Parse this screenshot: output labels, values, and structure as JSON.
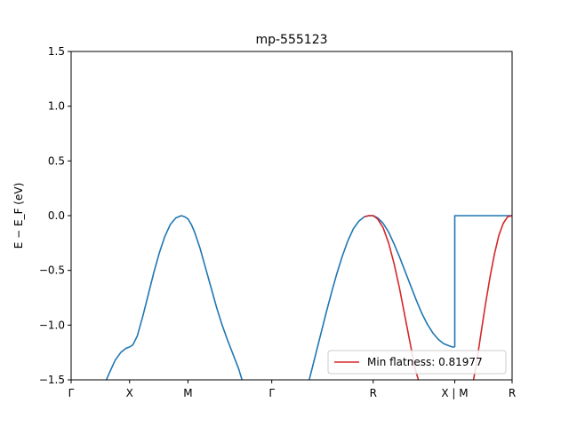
{
  "chart_data": {
    "type": "line",
    "title": "mp-555123",
    "ylabel": "E − E_F (eV)",
    "xlabel": "",
    "ylim": [
      -1.5,
      1.5
    ],
    "yticks": [
      {
        "value": 1.5,
        "label": "1.5"
      },
      {
        "value": 1.0,
        "label": "1.0"
      },
      {
        "value": 0.5,
        "label": "0.5"
      },
      {
        "value": 0.0,
        "label": "0.0"
      },
      {
        "value": -0.5,
        "label": "−0.5"
      },
      {
        "value": -1.0,
        "label": "−1.0"
      },
      {
        "value": -1.5,
        "label": "−1.5"
      }
    ],
    "xlim": [
      0,
      4.0
    ],
    "kpath_ticks": [
      {
        "x": 0.0,
        "label": "Γ"
      },
      {
        "x": 0.53,
        "label": "X"
      },
      {
        "x": 1.06,
        "label": "M"
      },
      {
        "x": 1.82,
        "label": "Γ"
      },
      {
        "x": 2.74,
        "label": "R"
      },
      {
        "x": 3.48,
        "label": "X | M"
      },
      {
        "x": 4.0,
        "label": "R"
      }
    ],
    "grid": false,
    "legend": {
      "position": "lower-right",
      "entries": [
        "Min flatness: 0.81977"
      ]
    },
    "series": [
      {
        "color": "#1f77b4",
        "segments": [
          {
            "x": [
              0.32,
              0.35,
              0.4,
              0.45,
              0.5,
              0.53,
              0.56,
              0.6,
              0.65,
              0.7,
              0.75,
              0.8,
              0.85,
              0.9,
              0.95,
              1.0,
              1.03,
              1.06,
              1.09,
              1.12,
              1.17,
              1.22,
              1.27,
              1.32,
              1.37,
              1.42,
              1.47,
              1.52,
              1.55
            ],
            "y": [
              -1.5,
              -1.43,
              -1.32,
              -1.25,
              -1.21,
              -1.2,
              -1.18,
              -1.1,
              -0.92,
              -0.72,
              -0.52,
              -0.34,
              -0.19,
              -0.08,
              -0.02,
              0.0,
              -0.01,
              -0.03,
              -0.08,
              -0.15,
              -0.3,
              -0.48,
              -0.66,
              -0.84,
              -1.0,
              -1.14,
              -1.27,
              -1.4,
              -1.5
            ]
          },
          {
            "x": [
              2.16,
              2.21,
              2.26,
              2.31,
              2.36,
              2.41,
              2.46,
              2.51,
              2.56,
              2.61,
              2.66,
              2.7,
              2.74,
              2.78,
              2.83,
              2.88,
              2.93,
              2.98,
              3.03,
              3.08,
              3.13,
              3.18,
              3.23,
              3.28,
              3.33,
              3.38,
              3.43,
              3.46,
              3.48
            ],
            "y": [
              -1.5,
              -1.3,
              -1.1,
              -0.9,
              -0.71,
              -0.53,
              -0.37,
              -0.23,
              -0.12,
              -0.05,
              -0.01,
              0.0,
              0.0,
              -0.02,
              -0.07,
              -0.15,
              -0.26,
              -0.38,
              -0.51,
              -0.64,
              -0.77,
              -0.89,
              -0.99,
              -1.07,
              -1.13,
              -1.17,
              -1.19,
              -1.2,
              -1.2
            ]
          },
          {
            "x": [
              3.48,
              3.48,
              4.0
            ],
            "y": [
              -1.2,
              0.0,
              0.0
            ]
          }
        ]
      },
      {
        "name": "Min flatness: 0.81977",
        "color": "#d62728",
        "segments": [
          {
            "x": [
              2.66,
              2.7,
              2.74,
              2.78,
              2.83,
              2.88,
              2.93,
              2.98,
              3.03,
              3.08,
              3.12,
              3.15
            ],
            "y": [
              -0.01,
              0.0,
              0.0,
              -0.03,
              -0.11,
              -0.25,
              -0.44,
              -0.67,
              -0.93,
              -1.19,
              -1.4,
              -1.5
            ]
          },
          {
            "x": [
              3.65,
              3.68,
              3.72,
              3.76,
              3.8,
              3.84,
              3.88,
              3.92,
              3.96,
              4.0
            ],
            "y": [
              -1.5,
              -1.33,
              -1.06,
              -0.8,
              -0.56,
              -0.35,
              -0.18,
              -0.07,
              -0.01,
              0.0
            ]
          }
        ]
      }
    ]
  }
}
